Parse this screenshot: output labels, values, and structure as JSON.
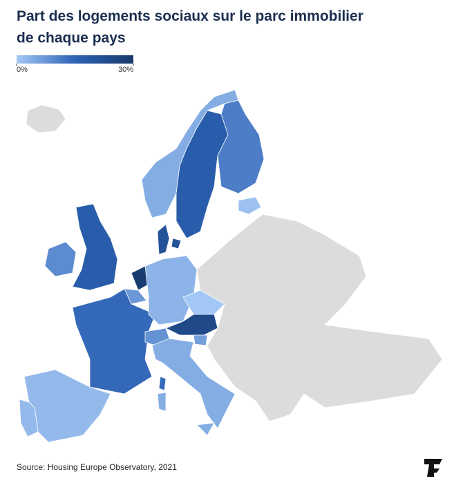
{
  "chart_data": {
    "type": "choropleth",
    "title": "Part des logements sociaux sur le parc immobilier de chaque pays",
    "colorscale": [
      "#a4c8f5",
      "#2c62b5",
      "#17396b"
    ],
    "range": [
      0,
      30
    ],
    "ticks": [
      {
        "value": 0,
        "label": "0%"
      },
      {
        "value": 30,
        "label": "30%"
      }
    ],
    "no_data_color": "#dcdcdc",
    "values": [
      4,
      17,
      11,
      1,
      17,
      9,
      21,
      29,
      7,
      14,
      2,
      2,
      3,
      0,
      24,
      8,
      6,
      4
    ],
    "source": "Source: Housing Europe Observatory, 2021"
  }
}
